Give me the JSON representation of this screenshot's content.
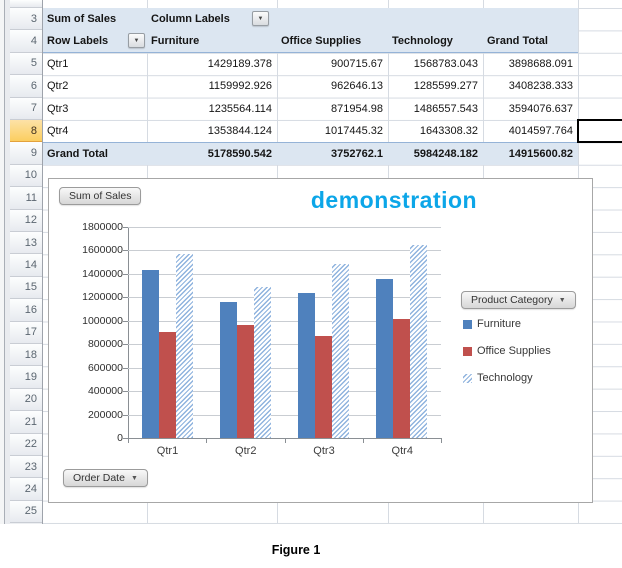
{
  "colors": {
    "pivot_header_bg": "#DCE6F1",
    "selected_row_header_bg": "#FBCE60",
    "title": "#0CA6E8",
    "technology_hatch": "#8FB3DE"
  },
  "sheet": {
    "row_numbers": [
      3,
      4,
      5,
      6,
      7,
      8,
      9,
      10,
      11,
      12,
      13,
      14,
      15,
      16,
      17,
      18,
      19,
      20,
      21,
      22,
      23,
      24,
      25
    ],
    "selected_row": 8,
    "pivot": {
      "a3": "Sum of Sales",
      "b3": "Column Labels",
      "row_labels_header": "Row Labels",
      "columns": [
        "Furniture",
        "Office Supplies",
        "Technology",
        "Grand Total"
      ],
      "rows": [
        {
          "label": "Qtr1",
          "bold": false,
          "values": [
            "1429189.378",
            "900715.67",
            "1568783.043",
            "3898688.091"
          ]
        },
        {
          "label": "Qtr2",
          "bold": false,
          "values": [
            "1159992.926",
            "962646.13",
            "1285599.277",
            "3408238.333"
          ]
        },
        {
          "label": "Qtr3",
          "bold": false,
          "values": [
            "1235564.114",
            "871954.98",
            "1486557.543",
            "3594076.637"
          ]
        },
        {
          "label": "Qtr4",
          "bold": false,
          "values": [
            "1353844.124",
            "1017445.32",
            "1643308.32",
            "4014597.764"
          ]
        },
        {
          "label": "Grand Total",
          "bold": true,
          "values": [
            "5178590.542",
            "3752762.1",
            "5984248.182",
            "14915600.82"
          ]
        }
      ]
    }
  },
  "chart": {
    "value_field_button": "Sum of Sales",
    "axis_field_button": "Order Date",
    "legend_field_button": "Product Category"
  },
  "chart_data": {
    "type": "bar",
    "title": "demonstration",
    "categories": [
      "Qtr1",
      "Qtr2",
      "Qtr3",
      "Qtr4"
    ],
    "series": [
      {
        "name": "Furniture",
        "color": "#4F81BD",
        "pattern": "solid",
        "values": [
          1429189.378,
          1159992.926,
          1235564.114,
          1353844.124
        ]
      },
      {
        "name": "Office Supplies",
        "color": "#C0504D",
        "pattern": "solid",
        "values": [
          900715.67,
          962646.13,
          871954.98,
          1017445.32
        ]
      },
      {
        "name": "Technology",
        "color": "#8FB3DE",
        "pattern": "diagonal-hatch",
        "values": [
          1568783.043,
          1285599.277,
          1486557.543,
          1643308.32
        ]
      }
    ],
    "ylim": [
      0,
      1800000
    ],
    "ytick_interval": 200000,
    "legend_position": "right",
    "grid": true
  },
  "caption": "Figure 1"
}
